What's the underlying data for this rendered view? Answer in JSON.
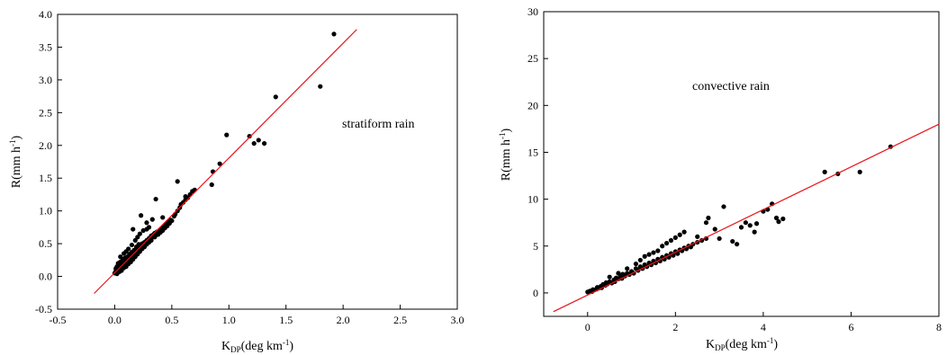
{
  "chart_data": [
    {
      "type": "scatter",
      "title": "",
      "annotation": "stratiform rain",
      "xlabel": {
        "main": "K",
        "sub": "DP",
        "rest": "(deg km",
        "sup": "-1",
        "close": ")"
      },
      "ylabel": {
        "main": "R(mm h",
        "sup": "-1",
        "close": ")"
      },
      "xlim": [
        -0.5,
        3.0
      ],
      "ylim": [
        -0.5,
        4.0
      ],
      "xticks": [
        "-0.5",
        "0.0",
        "0.5",
        "1.0",
        "1.5",
        "2.0",
        "2.5",
        "3.0"
      ],
      "xtick_values": [
        -0.5,
        0.0,
        0.5,
        1.0,
        1.5,
        2.0,
        2.5,
        3.0
      ],
      "yticks": [
        "-0.5",
        "0.0",
        "0.5",
        "1.0",
        "1.5",
        "2.0",
        "2.5",
        "3.0",
        "3.5",
        "4.0"
      ],
      "ytick_values": [
        -0.5,
        0.0,
        0.5,
        1.0,
        1.5,
        2.0,
        2.5,
        3.0,
        3.5,
        4.0
      ],
      "grid": false,
      "fit_line": {
        "x": [
          -0.18,
          2.12
        ],
        "y": [
          -0.26,
          3.77
        ],
        "color": "#e8141b"
      },
      "point_color": "#000000",
      "points": [
        [
          0.0,
          0.05
        ],
        [
          0.01,
          0.08
        ],
        [
          0.01,
          0.12
        ],
        [
          0.02,
          0.04
        ],
        [
          0.02,
          0.15
        ],
        [
          0.03,
          0.1
        ],
        [
          0.03,
          0.2
        ],
        [
          0.04,
          0.07
        ],
        [
          0.04,
          0.14
        ],
        [
          0.05,
          0.12
        ],
        [
          0.05,
          0.22
        ],
        [
          0.06,
          0.09
        ],
        [
          0.06,
          0.18
        ],
        [
          0.07,
          0.16
        ],
        [
          0.07,
          0.26
        ],
        [
          0.08,
          0.13
        ],
        [
          0.08,
          0.2
        ],
        [
          0.09,
          0.18
        ],
        [
          0.09,
          0.28
        ],
        [
          0.1,
          0.15
        ],
        [
          0.1,
          0.24
        ],
        [
          0.11,
          0.21
        ],
        [
          0.11,
          0.3
        ],
        [
          0.12,
          0.19
        ],
        [
          0.12,
          0.27
        ],
        [
          0.13,
          0.25
        ],
        [
          0.13,
          0.34
        ],
        [
          0.14,
          0.22
        ],
        [
          0.14,
          0.31
        ],
        [
          0.15,
          0.28
        ],
        [
          0.15,
          0.37
        ],
        [
          0.16,
          0.26
        ],
        [
          0.16,
          0.35
        ],
        [
          0.17,
          0.32
        ],
        [
          0.17,
          0.4
        ],
        [
          0.18,
          0.3
        ],
        [
          0.18,
          0.38
        ],
        [
          0.19,
          0.36
        ],
        [
          0.19,
          0.45
        ],
        [
          0.2,
          0.34
        ],
        [
          0.2,
          0.42
        ],
        [
          0.21,
          0.4
        ],
        [
          0.21,
          0.49
        ],
        [
          0.22,
          0.38
        ],
        [
          0.22,
          0.46
        ],
        [
          0.23,
          0.44
        ],
        [
          0.24,
          0.5
        ],
        [
          0.24,
          0.42
        ],
        [
          0.25,
          0.47
        ],
        [
          0.26,
          0.52
        ],
        [
          0.26,
          0.45
        ],
        [
          0.27,
          0.5
        ],
        [
          0.28,
          0.55
        ],
        [
          0.28,
          0.49
        ],
        [
          0.29,
          0.53
        ],
        [
          0.3,
          0.58
        ],
        [
          0.3,
          0.52
        ],
        [
          0.31,
          0.56
        ],
        [
          0.32,
          0.62
        ],
        [
          0.32,
          0.55
        ],
        [
          0.33,
          0.6
        ],
        [
          0.34,
          0.64
        ],
        [
          0.35,
          0.6
        ],
        [
          0.35,
          0.66
        ],
        [
          0.36,
          0.63
        ],
        [
          0.37,
          0.68
        ],
        [
          0.38,
          0.64
        ],
        [
          0.39,
          0.7
        ],
        [
          0.4,
          0.67
        ],
        [
          0.41,
          0.73
        ],
        [
          0.42,
          0.7
        ],
        [
          0.43,
          0.76
        ],
        [
          0.44,
          0.74
        ],
        [
          0.45,
          0.8
        ],
        [
          0.46,
          0.77
        ],
        [
          0.47,
          0.83
        ],
        [
          0.48,
          0.81
        ],
        [
          0.49,
          0.86
        ],
        [
          0.5,
          0.85
        ],
        [
          0.52,
          0.92
        ],
        [
          0.53,
          0.95
        ],
        [
          0.55,
          1.0
        ],
        [
          0.57,
          1.05
        ],
        [
          0.58,
          1.1
        ],
        [
          0.6,
          1.13
        ],
        [
          0.62,
          1.17
        ],
        [
          0.64,
          1.2
        ],
        [
          0.66,
          1.25
        ],
        [
          0.68,
          1.3
        ],
        [
          0.7,
          1.32
        ],
        [
          0.05,
          0.3
        ],
        [
          0.08,
          0.35
        ],
        [
          0.1,
          0.38
        ],
        [
          0.12,
          0.42
        ],
        [
          0.15,
          0.48
        ],
        [
          0.18,
          0.55
        ],
        [
          0.2,
          0.6
        ],
        [
          0.22,
          0.65
        ],
        [
          0.25,
          0.7
        ],
        [
          0.28,
          0.72
        ],
        [
          0.3,
          0.75
        ],
        [
          0.23,
          0.93
        ],
        [
          0.16,
          0.72
        ],
        [
          0.28,
          0.82
        ],
        [
          0.33,
          0.87
        ],
        [
          0.36,
          1.18
        ],
        [
          0.42,
          0.9
        ],
        [
          0.55,
          1.45
        ],
        [
          0.62,
          1.22
        ],
        [
          0.85,
          1.4
        ],
        [
          0.86,
          1.6
        ],
        [
          0.92,
          1.72
        ],
        [
          0.98,
          2.16
        ],
        [
          1.18,
          2.14
        ],
        [
          1.22,
          2.03
        ],
        [
          1.26,
          2.08
        ],
        [
          1.31,
          2.03
        ],
        [
          1.41,
          2.74
        ],
        [
          1.8,
          2.9
        ],
        [
          1.92,
          3.7
        ]
      ]
    },
    {
      "type": "scatter",
      "title": "",
      "annotation": "convective rain",
      "xlabel": {
        "main": "K",
        "sub": "DP",
        "rest": "(deg km",
        "sup": "-1",
        "close": ")"
      },
      "ylabel": {
        "main": "R(mm h",
        "sup": "-1",
        "close": ")"
      },
      "xlim": [
        -1.0,
        8.0
      ],
      "ylim": [
        -2.5,
        30.0
      ],
      "xticks": [
        "0",
        "2",
        "4",
        "6",
        "8"
      ],
      "xtick_values": [
        0,
        2,
        4,
        6,
        8
      ],
      "yticks": [
        "0",
        "5",
        "10",
        "15",
        "20",
        "25",
        "30"
      ],
      "ytick_values": [
        0,
        5,
        10,
        15,
        20,
        25,
        30
      ],
      "grid": false,
      "fit_line": {
        "x": [
          -0.78,
          8.0
        ],
        "y": [
          -2.0,
          18.0
        ],
        "color": "#e8141b"
      },
      "point_color": "#000000",
      "points": [
        [
          0.0,
          0.1
        ],
        [
          0.05,
          0.2
        ],
        [
          0.1,
          0.15
        ],
        [
          0.12,
          0.35
        ],
        [
          0.15,
          0.3
        ],
        [
          0.2,
          0.4
        ],
        [
          0.22,
          0.6
        ],
        [
          0.25,
          0.5
        ],
        [
          0.3,
          0.7
        ],
        [
          0.32,
          0.55
        ],
        [
          0.35,
          0.9
        ],
        [
          0.4,
          0.8
        ],
        [
          0.42,
          1.1
        ],
        [
          0.45,
          0.95
        ],
        [
          0.5,
          1.2
        ],
        [
          0.55,
          1.05
        ],
        [
          0.6,
          1.4
        ],
        [
          0.62,
          1.2
        ],
        [
          0.65,
          1.6
        ],
        [
          0.7,
          1.5
        ],
        [
          0.75,
          1.8
        ],
        [
          0.78,
          1.55
        ],
        [
          0.8,
          2.0
        ],
        [
          0.85,
          1.8
        ],
        [
          0.9,
          2.1
        ],
        [
          0.95,
          1.95
        ],
        [
          1.0,
          2.3
        ],
        [
          1.05,
          2.1
        ],
        [
          1.1,
          2.6
        ],
        [
          1.15,
          2.4
        ],
        [
          1.2,
          2.8
        ],
        [
          1.25,
          2.6
        ],
        [
          1.3,
          3.0
        ],
        [
          1.35,
          2.8
        ],
        [
          1.4,
          3.2
        ],
        [
          1.45,
          3.0
        ],
        [
          1.5,
          3.4
        ],
        [
          1.55,
          3.2
        ],
        [
          1.6,
          3.6
        ],
        [
          1.65,
          3.4
        ],
        [
          1.7,
          3.8
        ],
        [
          1.75,
          3.6
        ],
        [
          1.8,
          4.0
        ],
        [
          1.85,
          3.8
        ],
        [
          1.9,
          4.2
        ],
        [
          1.95,
          4.0
        ],
        [
          2.0,
          4.4
        ],
        [
          2.05,
          4.2
        ],
        [
          2.1,
          4.6
        ],
        [
          2.15,
          4.5
        ],
        [
          2.2,
          4.8
        ],
        [
          2.25,
          4.7
        ],
        [
          2.3,
          5.0
        ],
        [
          2.35,
          4.9
        ],
        [
          2.4,
          5.2
        ],
        [
          2.5,
          5.4
        ],
        [
          2.6,
          5.6
        ],
        [
          2.7,
          5.8
        ],
        [
          0.5,
          1.7
        ],
        [
          0.7,
          2.1
        ],
        [
          0.9,
          2.6
        ],
        [
          1.1,
          3.1
        ],
        [
          1.2,
          3.5
        ],
        [
          1.3,
          3.9
        ],
        [
          1.4,
          4.1
        ],
        [
          1.5,
          4.3
        ],
        [
          1.6,
          4.5
        ],
        [
          1.7,
          5.0
        ],
        [
          1.8,
          5.3
        ],
        [
          1.9,
          5.6
        ],
        [
          2.0,
          5.9
        ],
        [
          2.1,
          6.2
        ],
        [
          2.2,
          6.5
        ],
        [
          2.5,
          6.0
        ],
        [
          2.7,
          7.5
        ],
        [
          2.75,
          8.0
        ],
        [
          2.9,
          6.8
        ],
        [
          3.1,
          9.2
        ],
        [
          3.0,
          5.8
        ],
        [
          3.3,
          5.5
        ],
        [
          3.4,
          5.2
        ],
        [
          3.5,
          7.0
        ],
        [
          3.6,
          7.5
        ],
        [
          3.7,
          7.2
        ],
        [
          3.8,
          6.5
        ],
        [
          3.85,
          7.4
        ],
        [
          4.0,
          8.7
        ],
        [
          4.1,
          8.9
        ],
        [
          4.2,
          9.5
        ],
        [
          4.3,
          8.0
        ],
        [
          4.35,
          7.6
        ],
        [
          4.45,
          7.9
        ],
        [
          5.4,
          12.9
        ],
        [
          5.7,
          12.7
        ],
        [
          6.2,
          12.9
        ],
        [
          6.9,
          15.6
        ]
      ]
    }
  ]
}
